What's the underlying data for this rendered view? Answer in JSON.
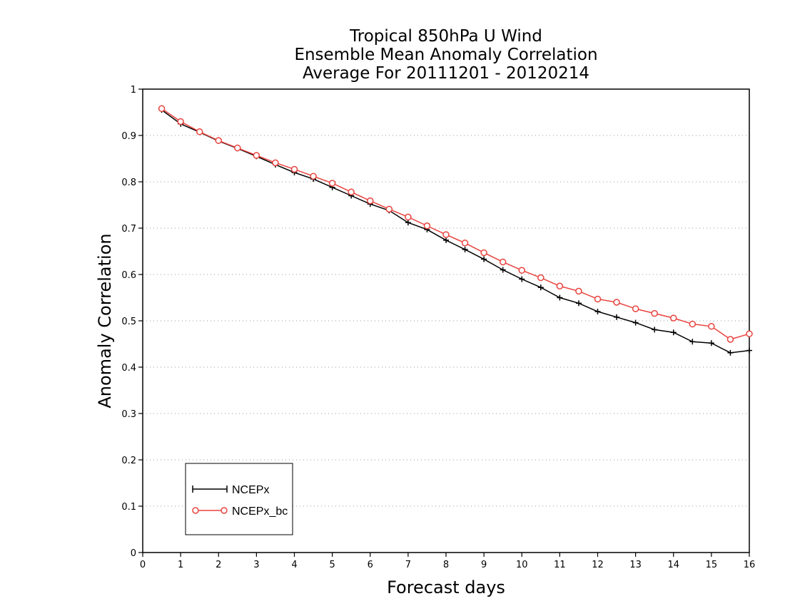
{
  "chart_data": {
    "type": "line",
    "title_lines": [
      "Tropical 850hPa U Wind",
      "Ensemble Mean Anomaly Correlation",
      "Average For 20111201 - 20120214"
    ],
    "xlabel": "Forecast days",
    "ylabel": "Anomaly Correlation",
    "xlim": [
      0,
      16
    ],
    "ylim": [
      0,
      1
    ],
    "xticks": [
      0,
      1,
      2,
      3,
      4,
      5,
      6,
      7,
      8,
      9,
      10,
      11,
      12,
      13,
      14,
      15,
      16
    ],
    "yticks": [
      0,
      0.1,
      0.2,
      0.3,
      0.4,
      0.5,
      0.6,
      0.7,
      0.8,
      0.9,
      1
    ],
    "grid": "dotted horizontal",
    "legend_position": "bottom-left",
    "x": [
      0.5,
      1,
      1.5,
      2,
      2.5,
      3,
      3.5,
      4,
      4.5,
      5,
      5.5,
      6,
      6.5,
      7,
      7.5,
      8,
      8.5,
      9,
      9.5,
      10,
      10.5,
      11,
      11.5,
      12,
      12.5,
      13,
      13.5,
      14,
      14.5,
      15,
      15.5,
      16
    ],
    "series": [
      {
        "name": "NCEPx",
        "color": "#000000",
        "marker": "plus",
        "values": [
          0.955,
          0.925,
          0.907,
          0.888,
          0.872,
          0.855,
          0.837,
          0.82,
          0.806,
          0.788,
          0.77,
          0.752,
          0.738,
          0.712,
          0.697,
          0.674,
          0.654,
          0.633,
          0.61,
          0.59,
          0.572,
          0.55,
          0.538,
          0.52,
          0.508,
          0.496,
          0.481,
          0.475,
          0.455,
          0.452,
          0.431,
          0.436
        ]
      },
      {
        "name": "NCEPx_bc",
        "color": "#e8433e",
        "marker": "circle",
        "values": [
          0.958,
          0.93,
          0.908,
          0.889,
          0.873,
          0.857,
          0.841,
          0.827,
          0.812,
          0.797,
          0.778,
          0.759,
          0.741,
          0.724,
          0.705,
          0.686,
          0.668,
          0.647,
          0.627,
          0.609,
          0.593,
          0.575,
          0.564,
          0.547,
          0.54,
          0.526,
          0.516,
          0.506,
          0.493,
          0.488,
          0.46,
          0.472
        ]
      }
    ]
  }
}
